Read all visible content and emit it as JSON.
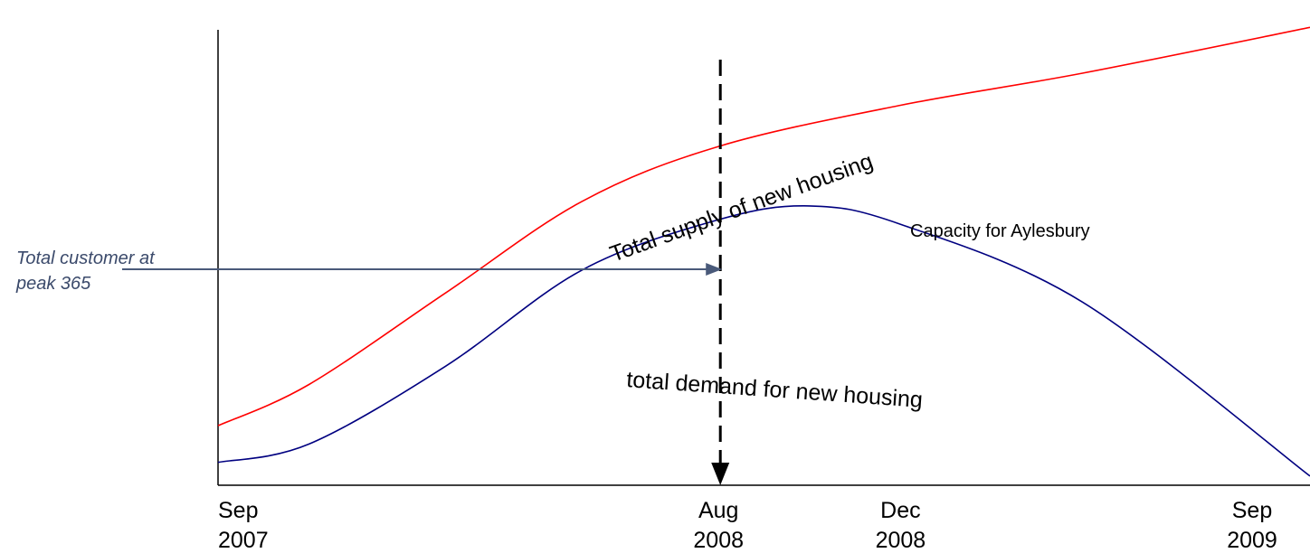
{
  "chart_data": {
    "type": "line",
    "x_ticks": [
      {
        "line1": "Sep",
        "line2": "2007",
        "date": "2007-09"
      },
      {
        "line1": "Aug",
        "line2": "2008",
        "date": "2008-08"
      },
      {
        "line1": "Dec",
        "line2": "2008",
        "date": "2008-12"
      },
      {
        "line1": "Sep",
        "line2": "2009",
        "date": "2009-09"
      }
    ],
    "series": [
      {
        "label": "Total supply of new housing",
        "color": "#ff0000",
        "points": [
          {
            "date": "2007-09",
            "y": 0.13
          },
          {
            "date": "2007-11",
            "y": 0.22
          },
          {
            "date": "2008-02",
            "y": 0.42
          },
          {
            "date": "2008-05",
            "y": 0.62
          },
          {
            "date": "2008-08",
            "y": 0.74
          },
          {
            "date": "2008-12",
            "y": 0.83
          },
          {
            "date": "2009-04",
            "y": 0.9
          },
          {
            "date": "2009-09",
            "y": 1.0
          }
        ]
      },
      {
        "label": "total demand for new housing",
        "color": "#000080",
        "points": [
          {
            "date": "2007-09",
            "y": 0.05
          },
          {
            "date": "2007-11",
            "y": 0.09
          },
          {
            "date": "2008-02",
            "y": 0.26
          },
          {
            "date": "2008-05",
            "y": 0.47
          },
          {
            "date": "2008-08",
            "y": 0.58
          },
          {
            "date": "2008-10",
            "y": 0.61
          },
          {
            "date": "2008-12",
            "y": 0.57
          },
          {
            "date": "2009-04",
            "y": 0.4
          },
          {
            "date": "2009-09",
            "y": 0.02
          }
        ]
      }
    ],
    "annotations": {
      "capacity": "Capacity for Aylesbury",
      "peak_note_line1": "Total customer at",
      "peak_note_line2": "peak 365",
      "marker_date": "2008-08",
      "arrow_color": "#4a5a7a"
    },
    "ylim": [
      0,
      1.05
    ],
    "grid": false
  }
}
